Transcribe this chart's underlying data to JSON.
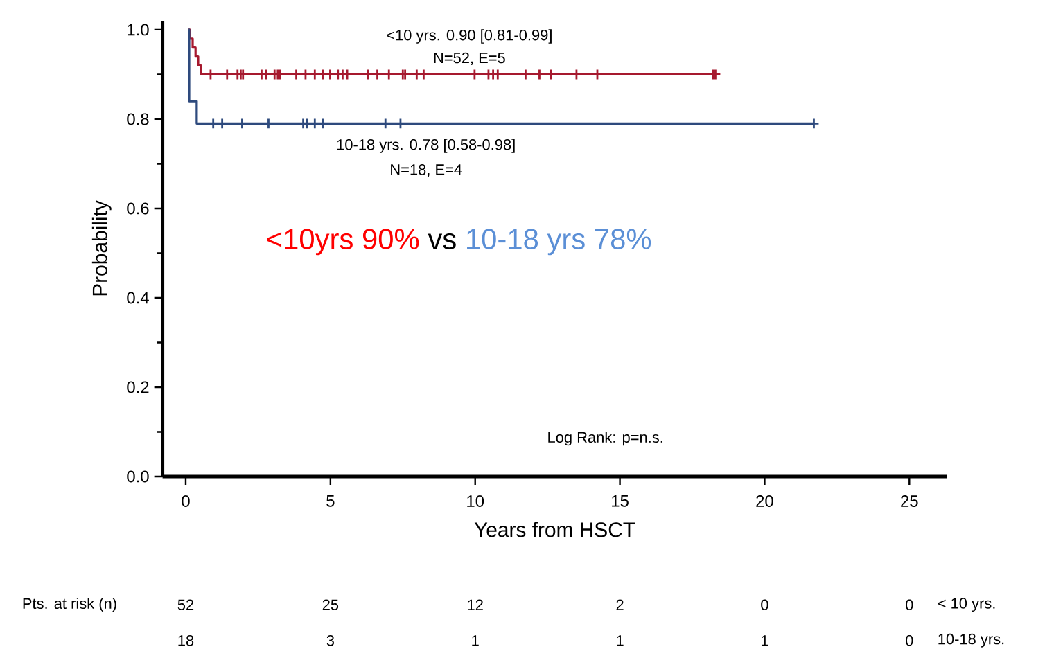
{
  "chart_data": {
    "type": "step",
    "xlabel": "Years from HSCT",
    "ylabel": "Probability",
    "xlim": [
      -0.8,
      26.3
    ],
    "ylim": [
      0,
      1.02
    ],
    "xticks": [
      0,
      5,
      10,
      15,
      20,
      25
    ],
    "yticks": [
      {
        "value": 0,
        "label": "0.0"
      },
      {
        "value": 0.2,
        "label": "0.2"
      },
      {
        "value": 0.4,
        "label": "0.4"
      },
      {
        "value": 0.6,
        "label": "0.6"
      },
      {
        "value": 0.8,
        "label": "0.8"
      },
      {
        "value": 1.0,
        "label": "1.0"
      }
    ],
    "grid": false,
    "legend": false,
    "marker": "none",
    "line_style": "solid",
    "series": [
      {
        "color": "#a6192e",
        "x": [
          0.1,
          0.14,
          0.24,
          0.34,
          0.43,
          0.53,
          18.3
        ],
        "values": [
          1.0,
          0.98,
          0.96,
          0.94,
          0.92,
          0.9,
          0.9
        ]
      },
      {
        "color": "#2e4a7d",
        "x": [
          0.1,
          0.12,
          0.38,
          21.7
        ],
        "values": [
          1.0,
          0.84,
          0.79,
          0.79
        ]
      },
      {
        "type": "scatter",
        "marker": "cross",
        "color": "#a6192e",
        "x": [
          0.86,
          1.43,
          1.79,
          1.9,
          1.98,
          2.62,
          2.78,
          3.07,
          3.18,
          3.26,
          3.82,
          4.14,
          4.46,
          4.73,
          4.99,
          5.26,
          5.42,
          5.58,
          6.3,
          6.62,
          7.02,
          7.5,
          7.58,
          7.98,
          8.22,
          9.98,
          10.46,
          10.62,
          10.78,
          11.74,
          12.22,
          12.62,
          13.5,
          14.22,
          18.22,
          18.3
        ],
        "values": [
          0.9,
          0.9,
          0.9,
          0.9,
          0.9,
          0.9,
          0.9,
          0.9,
          0.9,
          0.9,
          0.9,
          0.9,
          0.9,
          0.9,
          0.9,
          0.9,
          0.9,
          0.9,
          0.9,
          0.9,
          0.9,
          0.9,
          0.9,
          0.9,
          0.9,
          0.9,
          0.9,
          0.9,
          0.9,
          0.9,
          0.9,
          0.9,
          0.9,
          0.9,
          0.9,
          0.9
        ]
      },
      {
        "type": "scatter",
        "marker": "cross",
        "color": "#2e4a7d",
        "x": [
          0.95,
          1.26,
          1.95,
          2.86,
          4.06,
          4.19,
          4.46,
          4.73,
          6.9,
          7.42,
          21.7
        ],
        "values": [
          0.79,
          0.79,
          0.79,
          0.79,
          0.79,
          0.79,
          0.79,
          0.79,
          0.79,
          0.79,
          0.79
        ]
      }
    ],
    "annotations": [
      "<10 yrs. 0.90 [0.81-0.99]",
      "N=52, E=5",
      "10-18 yrs. 0.78 [0.58-0.98]",
      "N=18, E=4",
      "<10yrs 90%",
      "vs",
      "10-18 yrs 78%",
      "Log Rank: p=n.s.",
      "Pts. at risk (n)",
      "52",
      "25",
      "12",
      "2",
      "0",
      "0",
      "< 10 yrs.",
      "18",
      "3",
      "1",
      "1",
      "1",
      "0",
      "10-18 yrs."
    ]
  }
}
